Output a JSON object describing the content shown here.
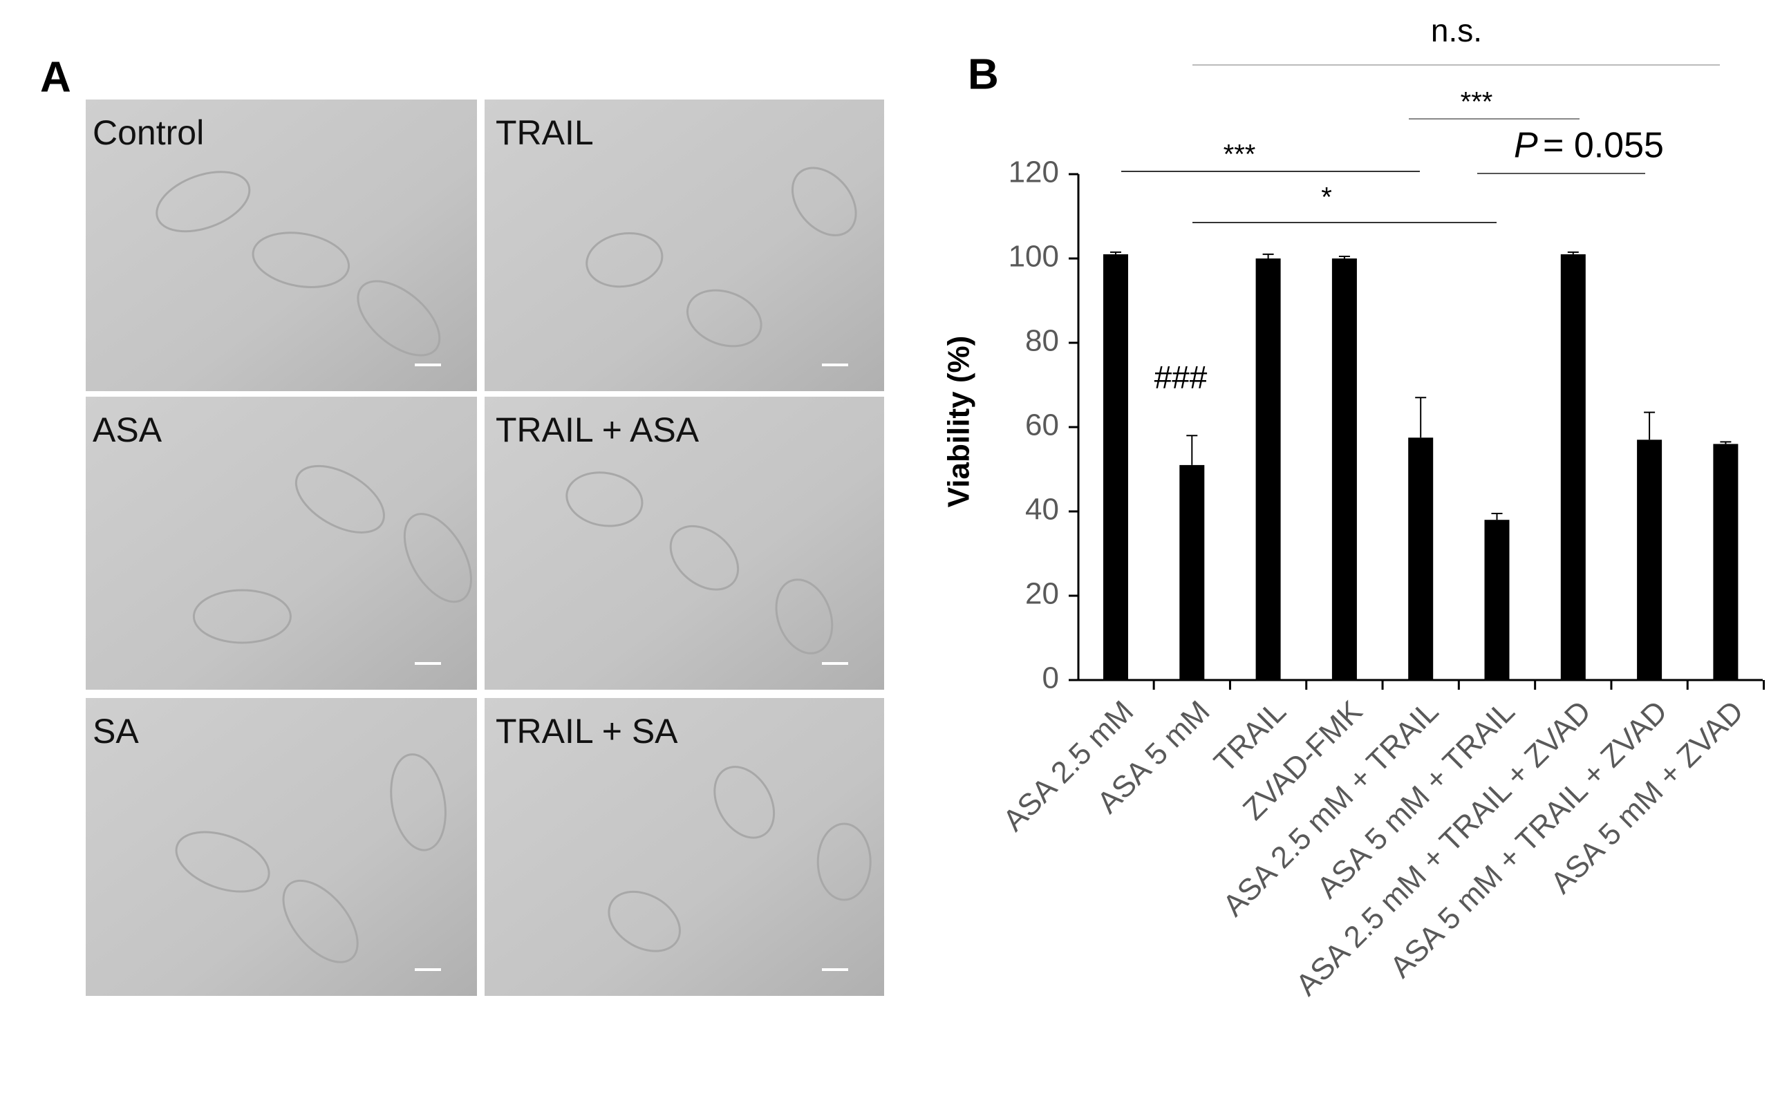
{
  "panel_a": {
    "label": "A",
    "images": [
      "Control",
      "TRAIL",
      "ASA",
      "TRAIL + ASA",
      "SA",
      "TRAIL + SA"
    ]
  },
  "chart_data": {
    "type": "bar",
    "panel_label": "B",
    "y_label": "Viability (%)",
    "categories": [
      "ASA 2.5 mM",
      "ASA 5 mM",
      "TRAIL",
      "ZVAD-FMK",
      "ASA 2.5 mM  + TRAIL",
      "ASA 5 mM + TRAIL",
      "ASA 2.5 mM + TRAIL + ZVAD",
      "ASA 5 mM  + TRAIL + ZVAD",
      "ASA 5 mM   + ZVAD"
    ],
    "values": [
      101,
      51,
      100,
      100,
      57.5,
      38,
      101,
      57,
      56
    ],
    "errors": [
      0.5,
      7,
      1,
      0.5,
      9.5,
      1.5,
      0.5,
      6.5,
      0.5
    ],
    "color": "#000000",
    "ylim": [
      0,
      120
    ],
    "yticks": [
      0,
      20,
      40,
      60,
      80,
      100,
      120
    ],
    "annotations": {
      "bar_mark": "###",
      "ns": "n.s.",
      "sig_top": "***",
      "p_symbol": "P",
      "p_text": "= 0.055",
      "sig_left": "***",
      "sig_mid": "*"
    }
  }
}
